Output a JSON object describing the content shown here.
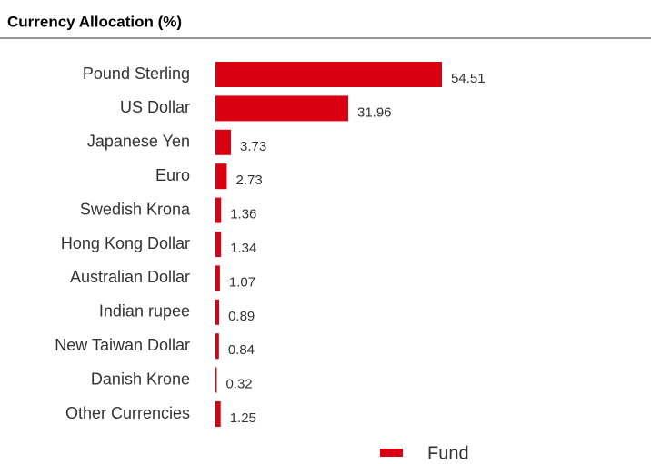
{
  "chart_data": {
    "type": "barh",
    "title": "Currency Allocation (%)",
    "categories": [
      "Pound Sterling",
      "US Dollar",
      "Japanese Yen",
      "Euro",
      "Swedish Krona",
      "Hong Kong Dollar",
      "Australian Dollar",
      "Indian rupee",
      "New Taiwan Dollar",
      "Danish Krone",
      "Other Currencies"
    ],
    "series": [
      {
        "name": "Fund",
        "color": "#db0011",
        "values": [
          54.51,
          31.96,
          3.73,
          2.73,
          1.36,
          1.34,
          1.07,
          0.89,
          0.84,
          0.32,
          1.25
        ]
      }
    ],
    "legend": "bottom"
  }
}
